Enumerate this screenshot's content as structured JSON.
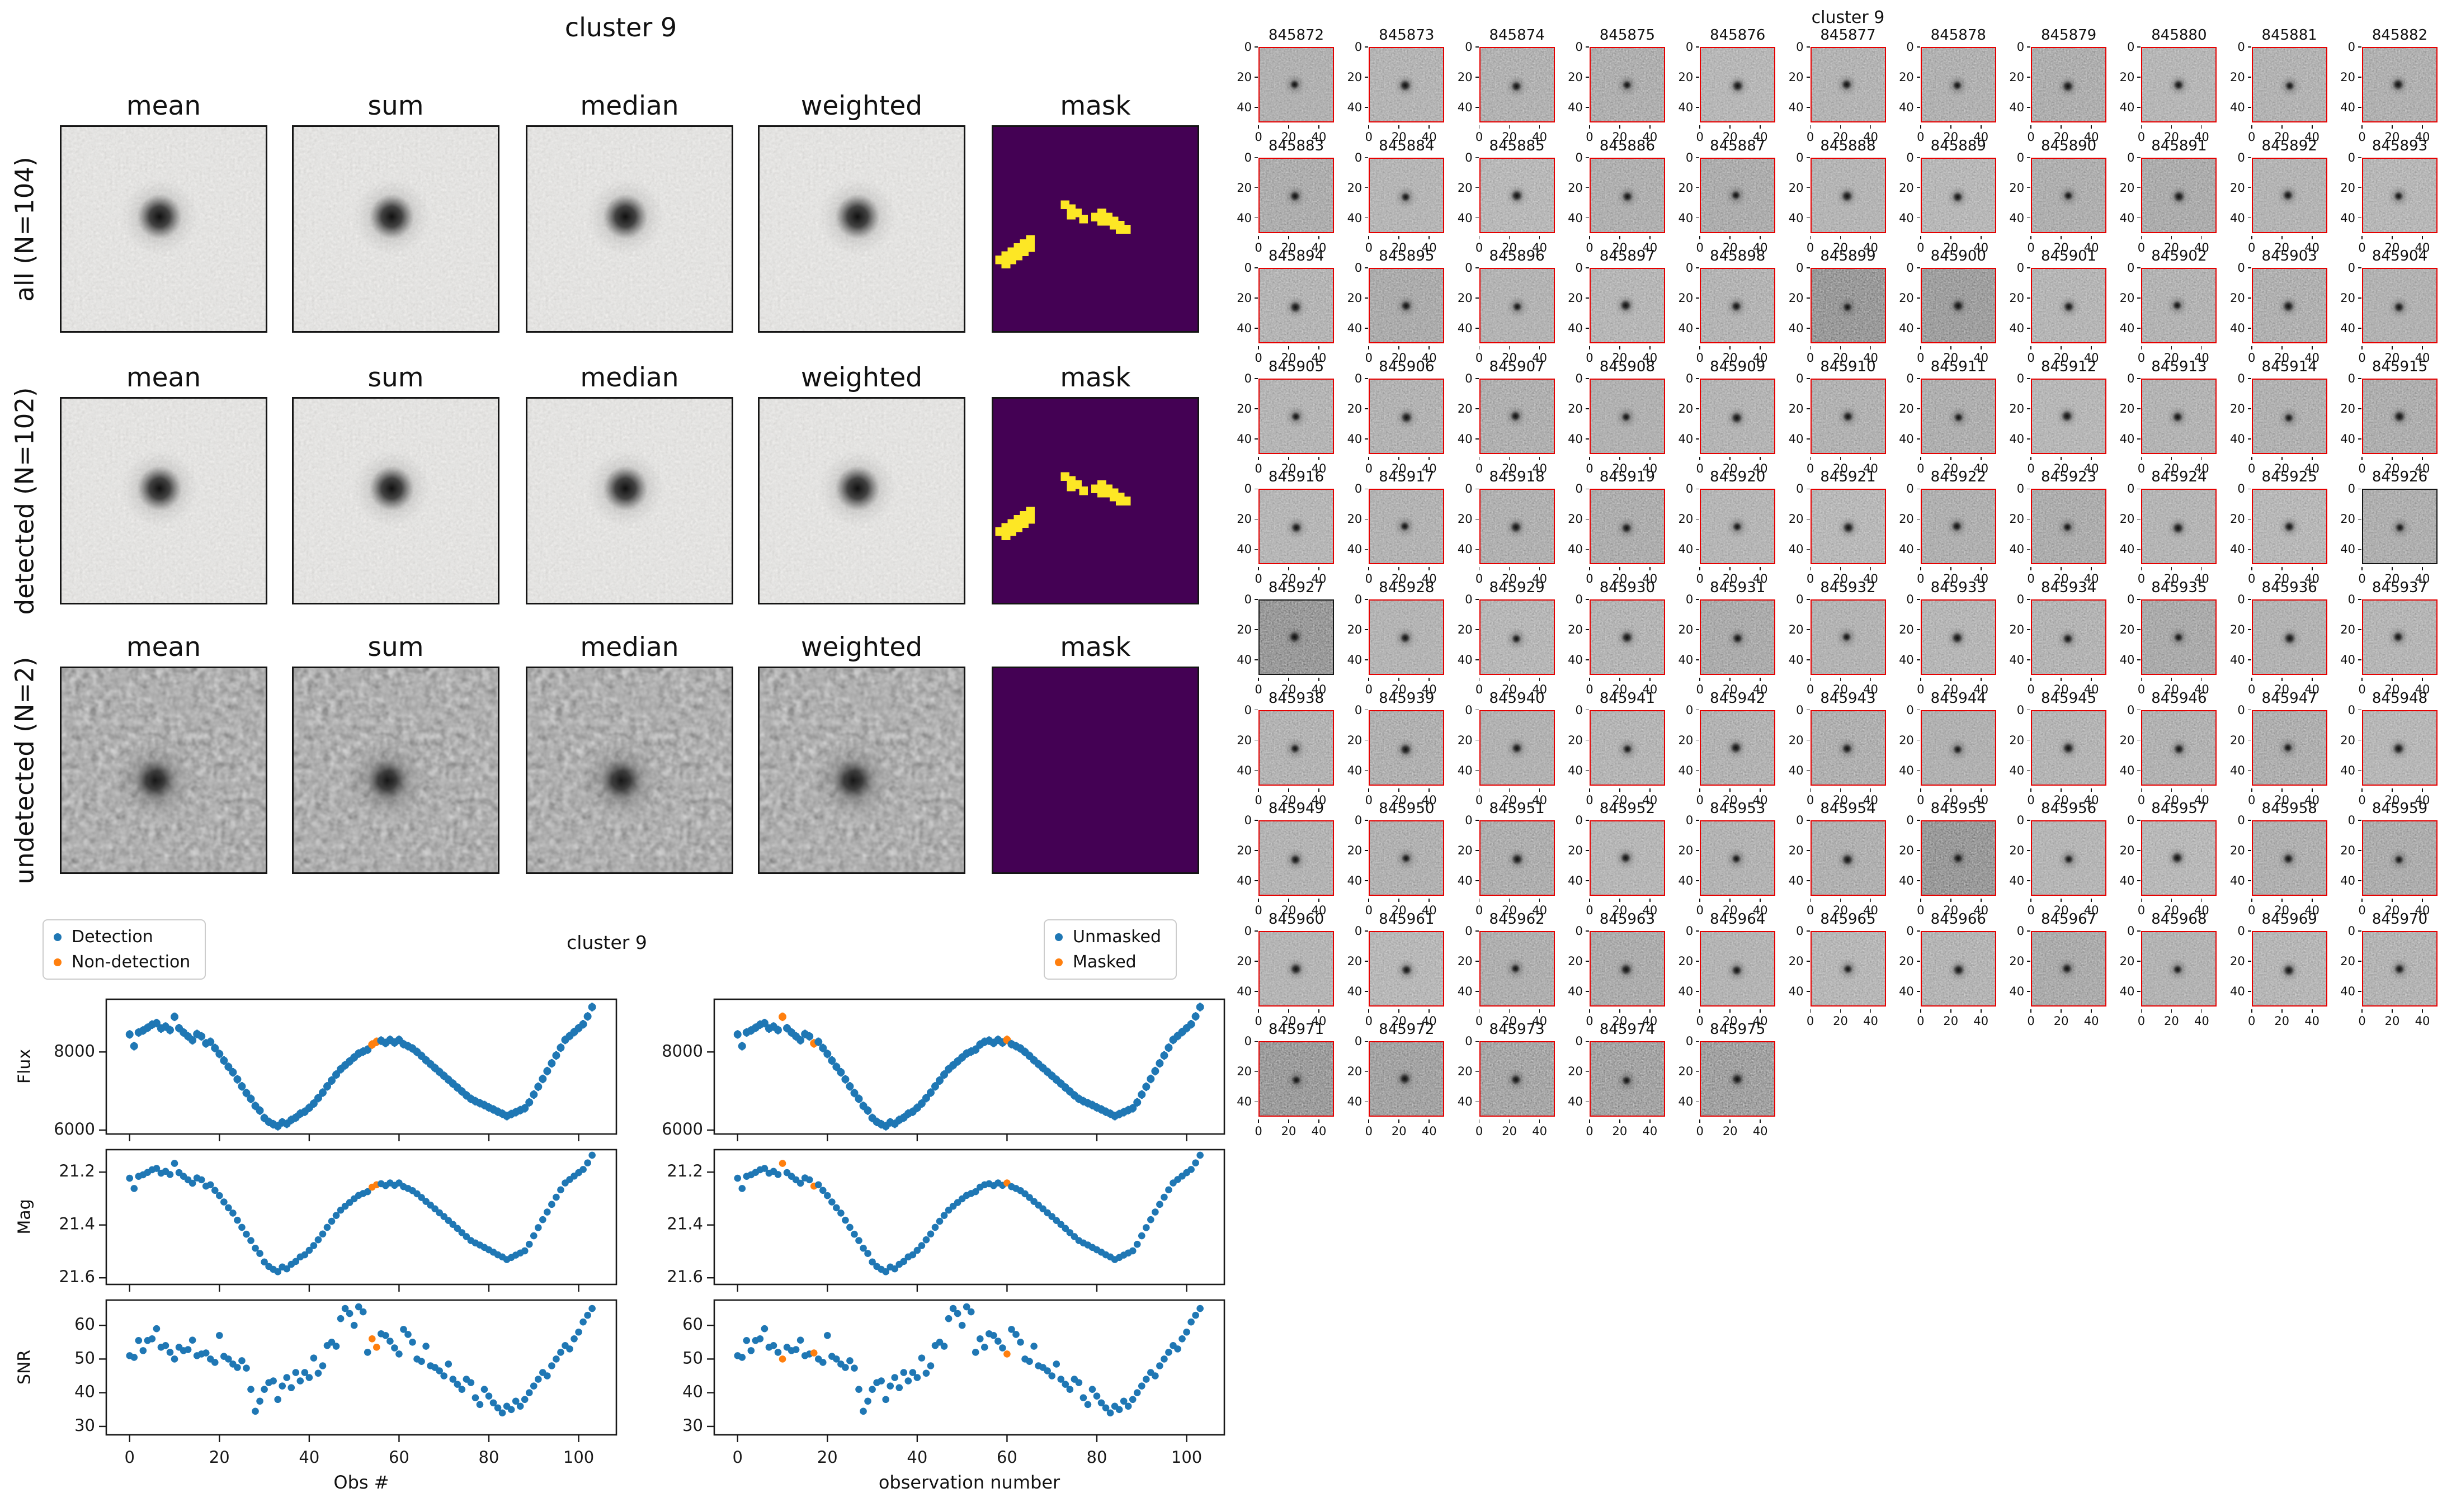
{
  "cutout_figure": {
    "title": "cluster 9",
    "column_headers": [
      "mean",
      "sum",
      "median",
      "weighted",
      "mask"
    ],
    "rows": [
      {
        "label": "all (N=104)",
        "mask_has_streaks": true
      },
      {
        "label": "detected (N=102)",
        "mask_has_streaks": true
      },
      {
        "label": "undetected (N=2)",
        "mask_has_streaks": false
      }
    ],
    "colors": {
      "mask_bg": "#440154",
      "mask_streak": "#fde725"
    }
  },
  "chart_data": {
    "type": "scatter",
    "title": "cluster 9",
    "panels": {
      "left": {
        "xlabel": "Obs #",
        "series_labels": [
          "Detection",
          "Non-detection"
        ]
      },
      "right": {
        "xlabel": "observation number",
        "series_labels": [
          "Unmasked",
          "Masked"
        ]
      }
    },
    "ylabels": [
      "Flux",
      "Mag",
      "SNR"
    ],
    "x_ticks": [
      0,
      20,
      40,
      60,
      80,
      100
    ],
    "x_tick_labels": [
      "0",
      "20",
      "40",
      "60",
      "80",
      "100"
    ],
    "xlim": [
      -5.2,
      108.4
    ],
    "n_obs": 104,
    "flux_ticks": [
      6000,
      8000
    ],
    "flux_tick_labels": [
      "6000",
      "8000"
    ],
    "flux_lim": [
      5900,
      9350
    ],
    "flux_err": 110,
    "mag_ticks": [
      21.2,
      21.4,
      21.6
    ],
    "mag_tick_labels": [
      "21.2",
      "21.4",
      "21.6"
    ],
    "mag_lim": [
      21.115,
      21.625
    ],
    "snr_ticks": [
      30,
      40,
      50,
      60
    ],
    "snr_tick_labels": [
      "30",
      "40",
      "50",
      "60"
    ],
    "snr_lim": [
      27.5,
      67.5
    ],
    "non_detection_indices": [
      54,
      55
    ],
    "masked_indices": [
      10,
      17,
      60
    ],
    "colors": {
      "detection": "#1f77b4",
      "flagged": "#ff7f0e"
    },
    "flux": [
      8450,
      8150,
      8500,
      8550,
      8620,
      8700,
      8740,
      8600,
      8650,
      8560,
      8900,
      8610,
      8500,
      8400,
      8300,
      8460,
      8400,
      8220,
      8260,
      8100,
      7950,
      7780,
      7620,
      7480,
      7300,
      7120,
      6950,
      6800,
      6620,
      6500,
      6310,
      6210,
      6150,
      6100,
      6200,
      6160,
      6260,
      6320,
      6420,
      6470,
      6570,
      6680,
      6820,
      6960,
      7120,
      7270,
      7420,
      7560,
      7660,
      7760,
      7860,
      7960,
      8010,
      8060,
      8190,
      8260,
      8290,
      8230,
      8310,
      8240,
      8310,
      8200,
      8150,
      8090,
      8000,
      7900,
      7790,
      7690,
      7590,
      7490,
      7390,
      7290,
      7190,
      7090,
      6990,
      6890,
      6800,
      6740,
      6690,
      6640,
      6580,
      6530,
      6470,
      6420,
      6360,
      6410,
      6460,
      6510,
      6560,
      6710,
      6910,
      7110,
      7310,
      7510,
      7710,
      7910,
      8110,
      8310,
      8410,
      8510,
      8610,
      8710,
      8910,
      9150
    ],
    "mag": [
      21.223,
      21.262,
      21.216,
      21.21,
      21.201,
      21.191,
      21.186,
      21.204,
      21.197,
      21.209,
      21.167,
      21.202,
      21.216,
      21.229,
      21.242,
      21.222,
      21.229,
      21.253,
      21.248,
      21.269,
      21.289,
      21.313,
      21.335,
      21.355,
      21.382,
      21.409,
      21.435,
      21.459,
      21.488,
      21.508,
      21.54,
      21.557,
      21.568,
      21.577,
      21.559,
      21.566,
      21.549,
      21.538,
      21.521,
      21.513,
      21.496,
      21.478,
      21.456,
      21.434,
      21.409,
      21.386,
      21.364,
      21.344,
      21.329,
      21.315,
      21.301,
      21.288,
      21.281,
      21.274,
      21.257,
      21.248,
      21.244,
      21.251,
      21.241,
      21.25,
      21.241,
      21.255,
      21.262,
      21.27,
      21.282,
      21.296,
      21.311,
      21.325,
      21.339,
      21.354,
      21.368,
      21.383,
      21.398,
      21.413,
      21.429,
      21.444,
      21.459,
      21.468,
      21.476,
      21.485,
      21.494,
      21.503,
      21.513,
      21.521,
      21.531,
      21.523,
      21.514,
      21.506,
      21.498,
      21.473,
      21.441,
      21.41,
      21.38,
      21.351,
      21.322,
      21.295,
      21.267,
      21.241,
      21.228,
      21.215,
      21.202,
      21.19,
      21.165,
      21.136
    ],
    "snr": [
      51,
      50.5,
      55.5,
      52.5,
      55.5,
      56,
      59,
      53.5,
      54,
      52,
      50,
      53.5,
      52.5,
      52.8,
      55.6,
      51,
      51.5,
      51.8,
      50,
      49,
      57,
      50.8,
      50,
      48.5,
      47.5,
      49.5,
      47.3,
      41,
      34.5,
      37.5,
      41,
      43,
      43.5,
      38,
      42,
      44.5,
      41.5,
      46,
      43.5,
      46,
      44.5,
      50.3,
      45.8,
      48,
      54,
      55,
      53.8,
      62,
      65,
      63.5,
      60,
      65.5,
      64,
      52,
      56,
      53.5,
      57.5,
      57,
      55.3,
      53.3,
      51.5,
      58.8,
      57.3,
      55,
      50,
      49.3,
      53.8,
      48,
      47.5,
      46.5,
      45,
      48.5,
      44,
      42.5,
      41,
      44,
      43,
      38.5,
      36.5,
      41,
      39,
      37,
      35.5,
      34,
      36,
      35,
      37.5,
      36,
      38,
      40,
      42,
      44,
      46,
      45,
      48,
      50,
      52,
      54,
      53,
      56,
      58,
      61,
      63,
      65
    ]
  },
  "thumbnail_grid": {
    "suptitle": "cluster 9",
    "axis_tick_labels": [
      "0",
      "20",
      "40"
    ],
    "border_color": "#e60000",
    "special_border_color": "#141414",
    "special_border_ids": [
      845926,
      845927
    ],
    "dark_ids": [
      845899,
      845900,
      845927,
      845955
    ],
    "ids": [
      845872,
      845873,
      845874,
      845875,
      845876,
      845877,
      845878,
      845879,
      845880,
      845881,
      845882,
      845883,
      845884,
      845885,
      845886,
      845887,
      845888,
      845889,
      845890,
      845891,
      845892,
      845893,
      845894,
      845895,
      845896,
      845897,
      845898,
      845899,
      845900,
      845901,
      845902,
      845903,
      845904,
      845905,
      845906,
      845907,
      845908,
      845909,
      845910,
      845911,
      845912,
      845913,
      845914,
      845915,
      845916,
      845917,
      845918,
      845919,
      845920,
      845921,
      845922,
      845923,
      845924,
      845925,
      845926,
      845927,
      845928,
      845929,
      845930,
      845931,
      845932,
      845933,
      845934,
      845935,
      845936,
      845937,
      845938,
      845939,
      845940,
      845941,
      845942,
      845943,
      845944,
      845945,
      845946,
      845947,
      845948,
      845949,
      845950,
      845951,
      845952,
      845953,
      845954,
      845955,
      845956,
      845957,
      845958,
      845959,
      845960,
      845961,
      845962,
      845963,
      845964,
      845965,
      845966,
      845967,
      845968,
      845969,
      845970,
      845971,
      845972,
      845973,
      845974,
      845975
    ]
  }
}
